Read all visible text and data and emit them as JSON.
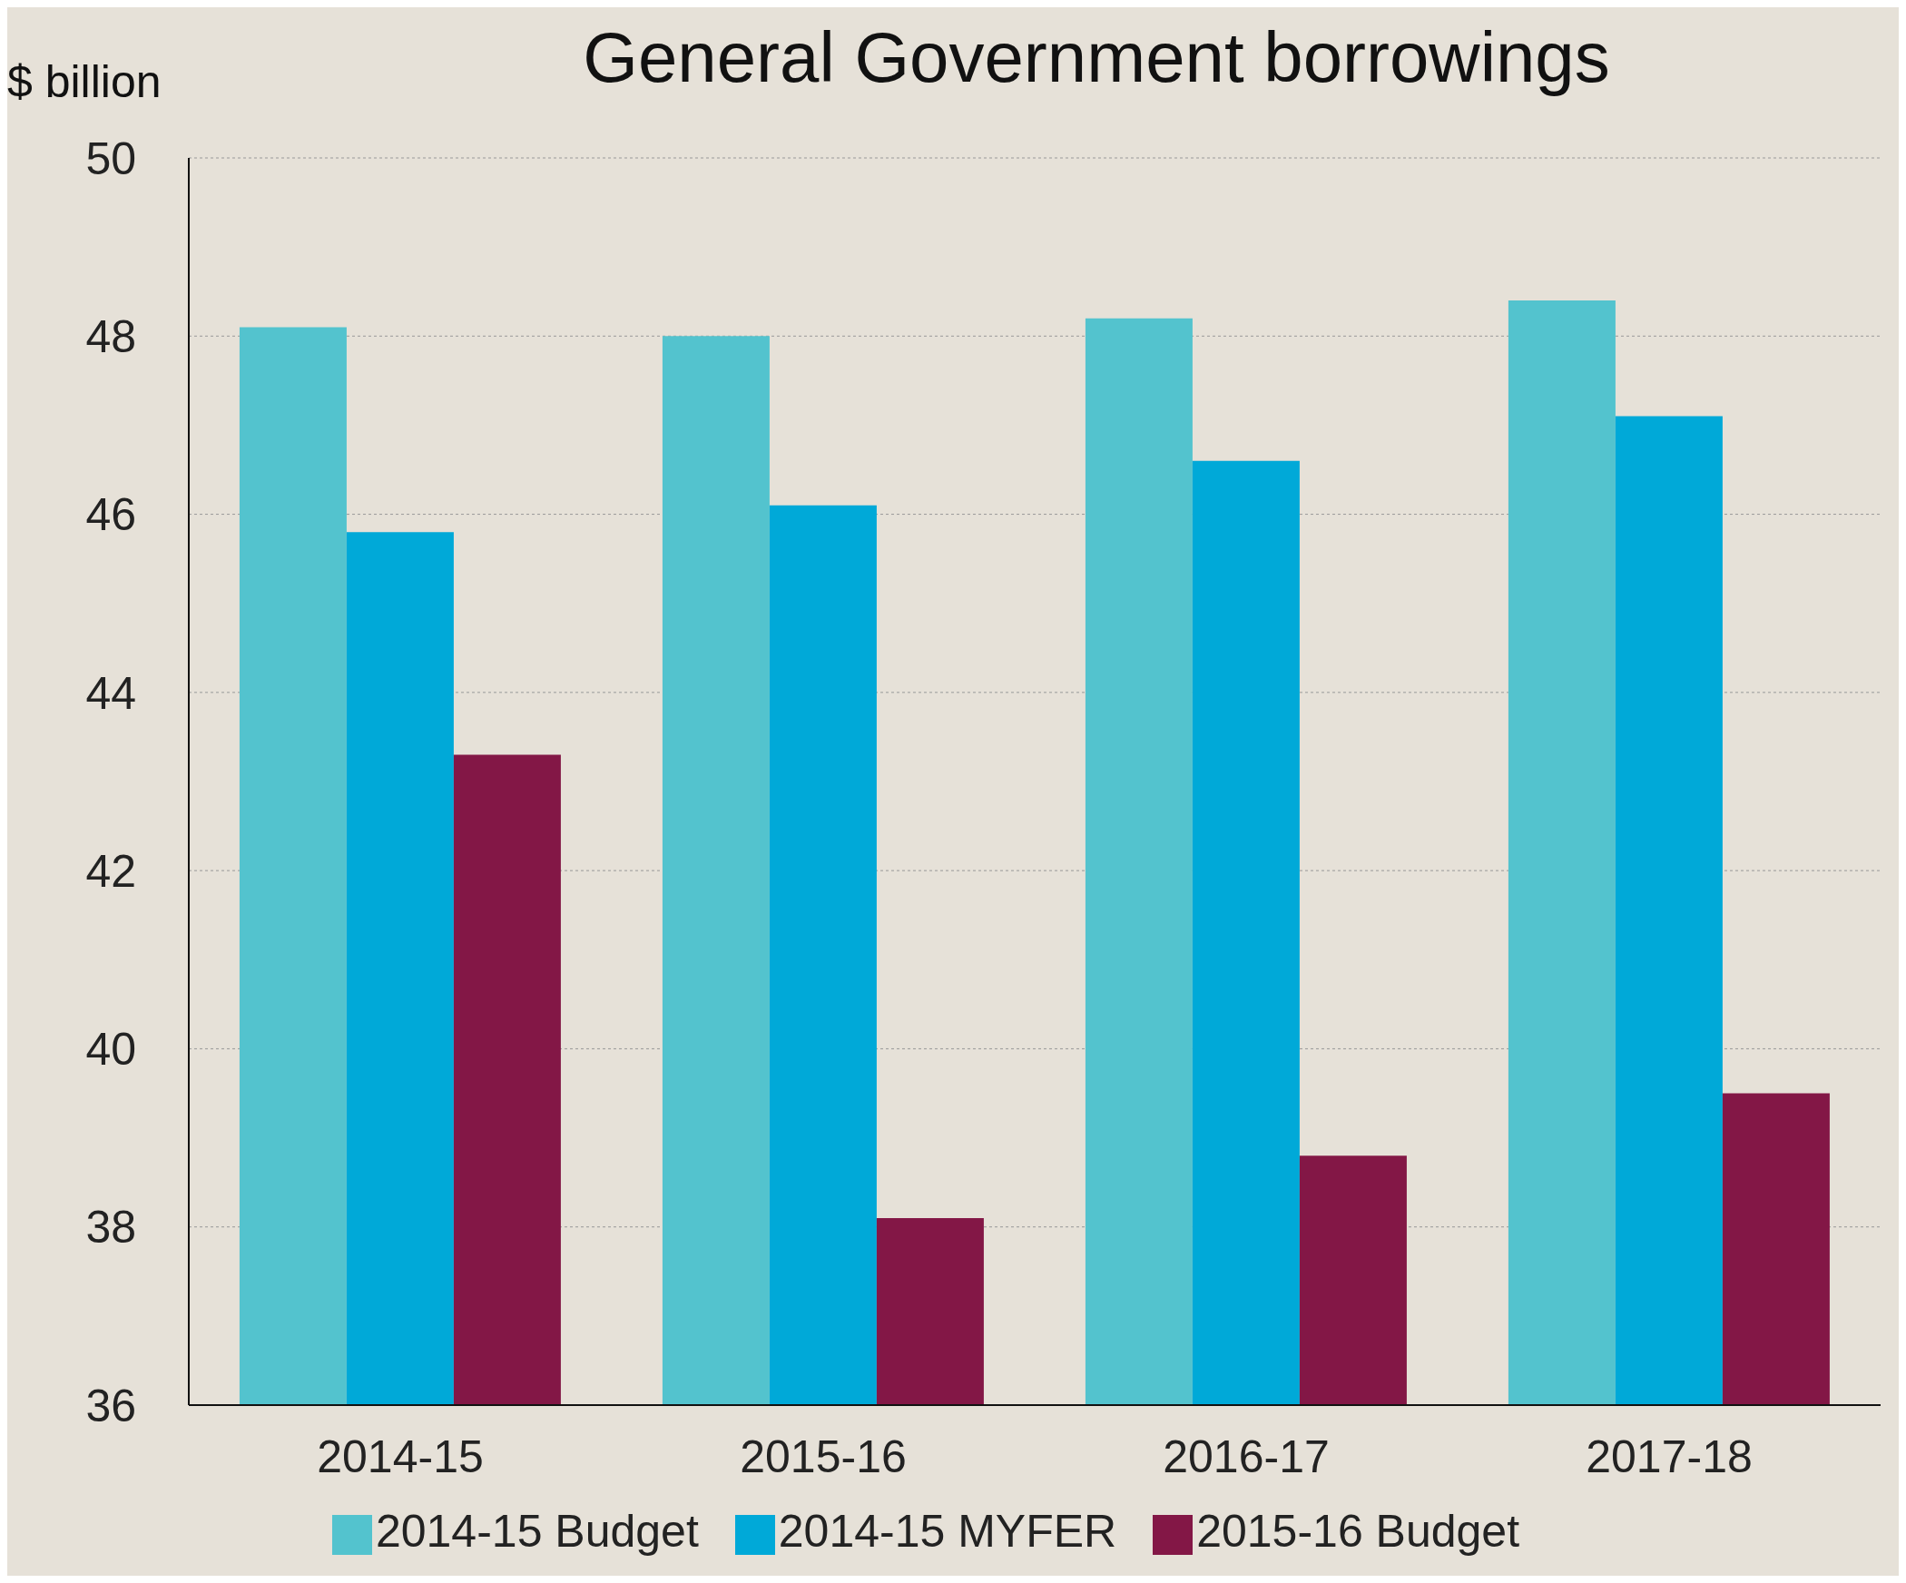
{
  "chart_data": {
    "type": "bar",
    "title": "General Government borrowings",
    "ylabel": "$ billion",
    "categories": [
      "2014-15",
      "2015-16",
      "2016-17",
      "2017-18"
    ],
    "series": [
      {
        "name": "2014-15 Budget",
        "color": "#53c3ce",
        "values": [
          48.1,
          48.0,
          48.2,
          48.4
        ]
      },
      {
        "name": "2014-15 MYFER",
        "color": "#00a9d8",
        "values": [
          45.8,
          46.1,
          46.6,
          47.1
        ]
      },
      {
        "name": "2015-16 Budget",
        "color": "#831746",
        "values": [
          43.3,
          38.1,
          38.8,
          39.5
        ]
      }
    ],
    "ylim": [
      36,
      50
    ],
    "yticks": [
      36,
      38,
      40,
      42,
      44,
      46,
      48,
      50
    ],
    "grid": "y",
    "legend": "bottom"
  }
}
